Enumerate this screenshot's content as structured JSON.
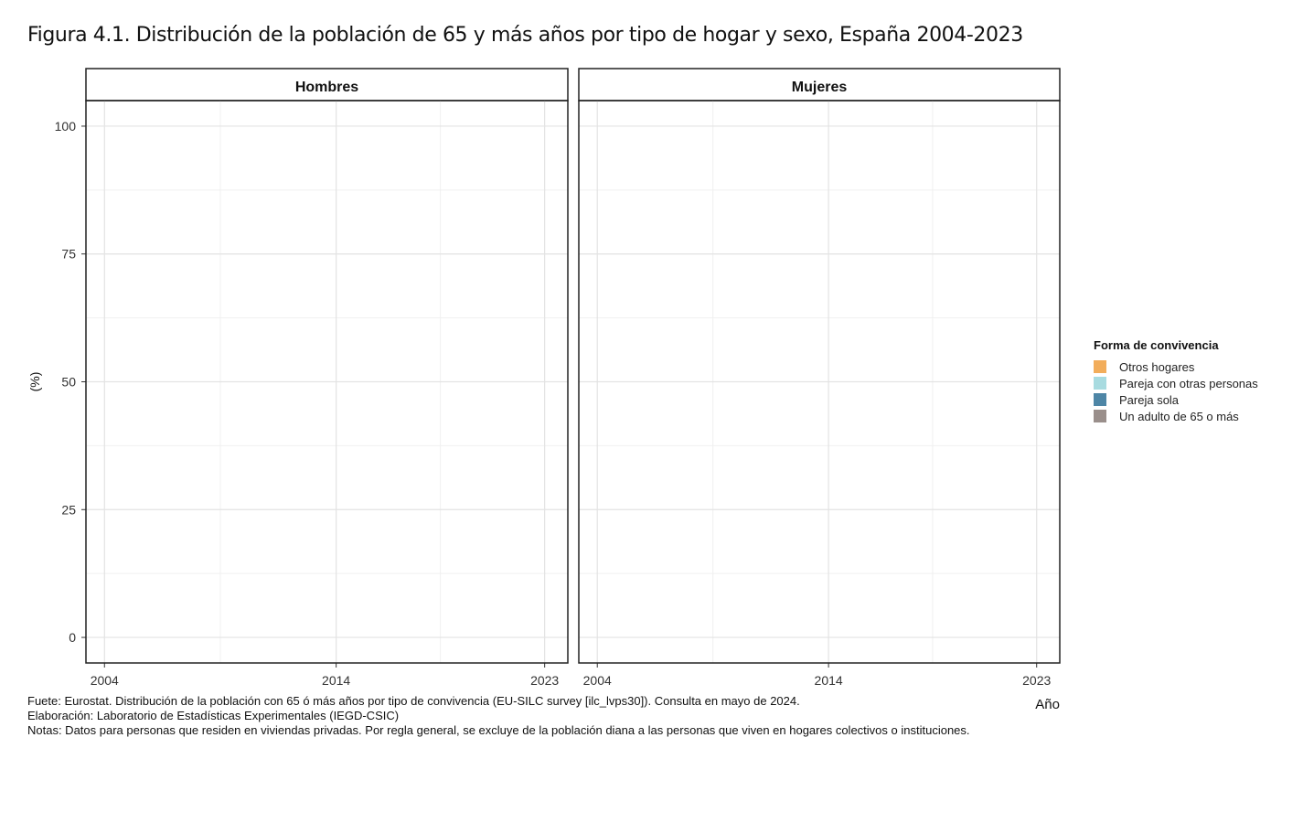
{
  "title": "Figura 4.1. Distribución de la población de 65 y más años por tipo de hogar y sexo, España 2004-2023",
  "chart_data": {
    "type": "area",
    "facets": [
      "Hombres",
      "Mujeres"
    ],
    "ylabel": "(%)",
    "xlabel": "Año",
    "ylim": [
      -5,
      105
    ],
    "xlim": [
      2003.2,
      2024
    ],
    "x_ticks": [
      2004,
      2014,
      2023
    ],
    "y_ticks": [
      0,
      25,
      50,
      75,
      100
    ],
    "grid": true,
    "legend_position": "right",
    "legend_title": "Forma de convivencia",
    "series": [
      {
        "name": "Otros hogares",
        "color": "#F2AD5B",
        "values": []
      },
      {
        "name": "Pareja con otras personas",
        "color": "#A8DBE0",
        "values": []
      },
      {
        "name": "Pareja sola",
        "color": "#4E86A6",
        "values": []
      },
      {
        "name": "Un adulto de 65 o más",
        "color": "#9A8F8B",
        "values": []
      }
    ]
  },
  "footnotes": [
    "Fuete: Eurostat. Distribución de la población con 65 ó más años por tipo de convivencia (EU-SILC survey [ilc_lvps30]). Consulta en mayo de 2024.",
    "Elaboración: Laboratorio de Estadísticas Experimentales (IEGD-CSIC)",
    "Notas: Datos para personas que residen en viviendas privadas. Por regla general, se excluye de la población diana a las personas que viven en hogares colectivos o instituciones."
  ]
}
